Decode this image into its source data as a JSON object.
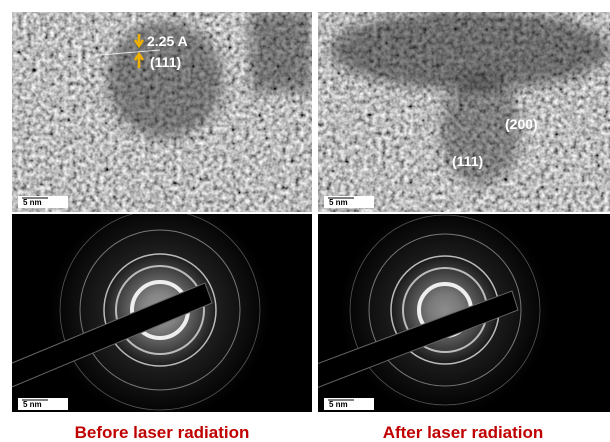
{
  "panels": [
    {
      "annotations": [
        "2.25 A",
        "(111)"
      ],
      "scale_bar": "5 nm"
    },
    {
      "annotations": [
        "(200)",
        "(111)"
      ],
      "scale_bar": "5 nm"
    },
    {
      "scale_bar": "5 nm"
    },
    {
      "scale_bar": "5 nm"
    }
  ],
  "captions": [
    "Before laser radiation",
    "After laser radiation"
  ]
}
